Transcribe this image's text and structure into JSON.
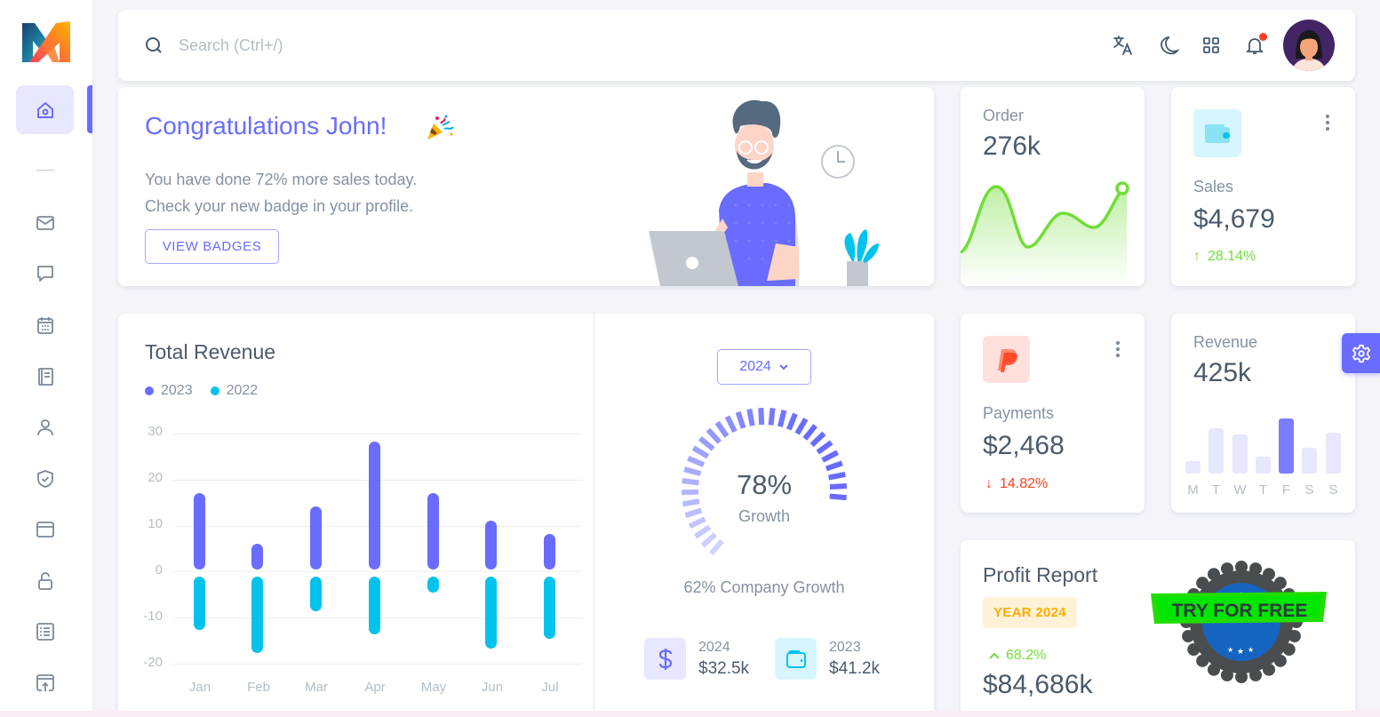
{
  "app": {
    "logo": "M logo"
  },
  "sidebar": {
    "items": [
      {
        "name": "home",
        "icon": "home-icon",
        "active": true
      },
      {
        "name": "email",
        "icon": "mail-icon"
      },
      {
        "name": "chat",
        "icon": "chat-icon"
      },
      {
        "name": "calendar",
        "icon": "calendar-icon"
      },
      {
        "name": "invoice",
        "icon": "book-icon"
      },
      {
        "name": "user",
        "icon": "user-icon"
      },
      {
        "name": "roles",
        "icon": "shield-check-icon"
      },
      {
        "name": "pages",
        "icon": "window-icon"
      },
      {
        "name": "auth",
        "icon": "lock-open-icon"
      },
      {
        "name": "wizard",
        "icon": "list-icon"
      },
      {
        "name": "modals",
        "icon": "upload-window-icon"
      }
    ]
  },
  "topbar": {
    "search": {
      "placeholder": "Search (Ctrl+/)",
      "value": ""
    },
    "icons": [
      "translate-icon",
      "moon-icon",
      "grid-icon",
      "bell-icon"
    ],
    "notification_dot": true
  },
  "congrats": {
    "title": "Congratulations John!",
    "emoji": "🎉",
    "line1": "You have done 72% more sales today.",
    "line2": "Check your new badge in your profile.",
    "button": "VIEW BADGES"
  },
  "order": {
    "title": "Order",
    "value": "276k",
    "color": "#71dd37"
  },
  "sales": {
    "title": "Sales",
    "value": "$4,679",
    "change": "28.14%",
    "trend": "up",
    "color": "#71dd37"
  },
  "total_revenue": {
    "title": "Total Revenue",
    "legend": [
      {
        "label": "2023",
        "color": "#696cff"
      },
      {
        "label": "2022",
        "color": "#03c3ec"
      }
    ],
    "year_select": "2024",
    "gauge": {
      "value": "78%",
      "label": "Growth"
    },
    "company_growth": "62% Company Growth",
    "mini_stats": [
      {
        "year": "2024",
        "value": "$32.5k",
        "icon": "dollar-icon"
      },
      {
        "year": "2023",
        "value": "$41.2k",
        "icon": "wallet-icon"
      }
    ]
  },
  "payments": {
    "title": "Payments",
    "value": "$2,468",
    "change": "14.82%",
    "trend": "down",
    "color": "#ff3e1d"
  },
  "revenue": {
    "title": "Revenue",
    "value": "425k",
    "days": [
      "M",
      "T",
      "W",
      "T",
      "F",
      "S",
      "S"
    ],
    "bars": [
      12,
      42,
      36,
      16,
      52,
      24,
      38
    ],
    "highlight_index": 4
  },
  "profit": {
    "title": "Profit Report",
    "badge": "YEAR 2024",
    "change": "68.2%",
    "value": "$84,686k",
    "promo": "TRY FOR FREE"
  },
  "chart_data": [
    {
      "type": "bar",
      "title": "Total Revenue",
      "categories": [
        "Jan",
        "Feb",
        "Mar",
        "Apr",
        "May",
        "Jun",
        "Jul"
      ],
      "series": [
        {
          "name": "2023",
          "values": [
            18,
            7,
            15,
            29,
            18,
            12,
            9
          ]
        },
        {
          "name": "2022",
          "values": [
            -13,
            -18,
            -9,
            -14,
            -5,
            -17,
            -15
          ]
        }
      ],
      "yticks": [
        30,
        20,
        10,
        0,
        -10,
        -20
      ],
      "ylim": [
        -20,
        30
      ],
      "grid": true,
      "legend_position": "top-left"
    },
    {
      "type": "line",
      "title": "Order",
      "values": [
        10,
        80,
        15,
        55,
        38,
        85
      ],
      "area": true
    },
    {
      "type": "bar",
      "title": "Revenue",
      "categories": [
        "M",
        "T",
        "W",
        "T",
        "F",
        "S",
        "S"
      ],
      "values": [
        12,
        42,
        36,
        16,
        52,
        24,
        38
      ]
    },
    {
      "type": "radial",
      "title": "Growth",
      "value": 78
    }
  ]
}
